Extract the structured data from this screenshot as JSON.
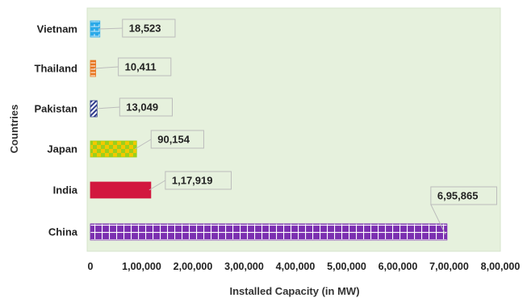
{
  "chart_data": {
    "type": "bar",
    "orientation": "horizontal",
    "categories": [
      "China",
      "India",
      "Japan",
      "Pakistan",
      "Thailand",
      "Vietnam"
    ],
    "values": [
      695865,
      117919,
      90154,
      13049,
      10411,
      18523
    ],
    "value_labels": [
      "6,95,865",
      "1,17,919",
      "90,154",
      "13,049",
      "10,411",
      "18,523"
    ],
    "xlabel": "Installed Capacity (in MW)",
    "ylabel": "Countries",
    "xlim": [
      0,
      800000
    ],
    "x_ticks": [
      0,
      100000,
      200000,
      300000,
      400000,
      500000,
      600000,
      700000,
      800000
    ],
    "x_tick_labels": [
      "0",
      "1,00,000",
      "2,00,000",
      "3,00,000",
      "4,00,000",
      "5,00,000",
      "6,00,000",
      "7,00,000",
      "8,00,000"
    ],
    "grid": false,
    "legend": "none",
    "plot_background": "#e6f1dd",
    "bar_styles": [
      {
        "pattern": "grid",
        "color": "#7b2fb0",
        "accent": "#ffffff"
      },
      {
        "pattern": "solid",
        "color": "#d2173e",
        "accent": "#d2173e"
      },
      {
        "pattern": "checker",
        "color": "#9ccf1b",
        "accent": "#f3c800"
      },
      {
        "pattern": "stripes",
        "color": "#2f3b8c",
        "accent": "#ffffff"
      },
      {
        "pattern": "dashes",
        "color": "#e87722",
        "accent": "#ffffff"
      },
      {
        "pattern": "bricks",
        "color": "#29a9e8",
        "accent": "#ffffff"
      }
    ]
  }
}
